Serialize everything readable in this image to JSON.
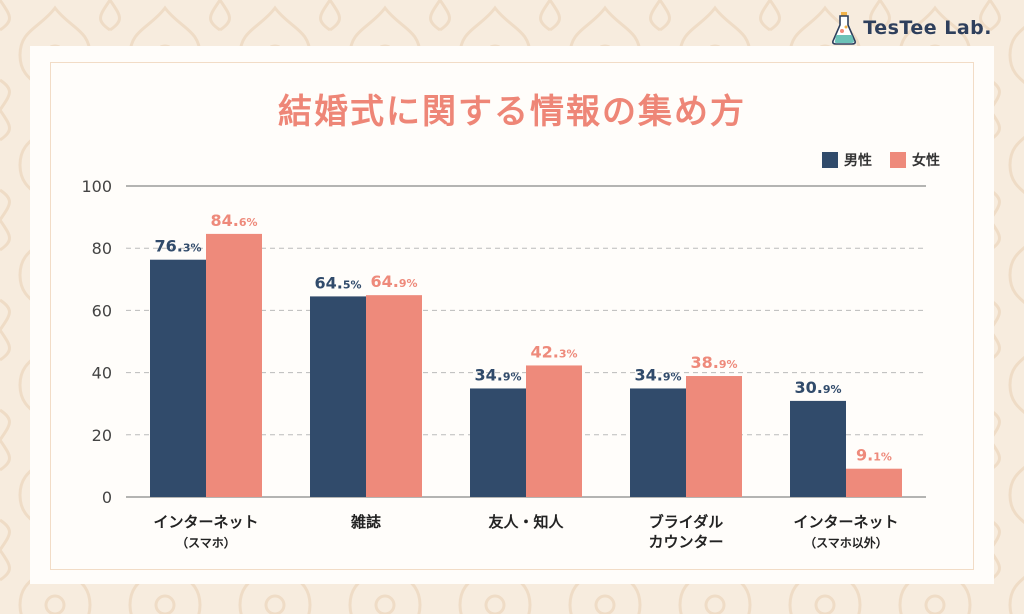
{
  "brand": {
    "logo_text": "TesTee Lab."
  },
  "colors": {
    "male": "#314b6b",
    "female": "#ee8a7b",
    "title": "#ee8677"
  },
  "chart_data": {
    "type": "bar",
    "title": "結婚式に関する情報の集め方",
    "categories": [
      [
        "インターネット",
        "（スマホ）"
      ],
      [
        "雑誌"
      ],
      [
        "友人・知人"
      ],
      [
        "ブライダル",
        "カウンター"
      ],
      [
        "インターネット",
        "（スマホ以外）"
      ]
    ],
    "series": [
      {
        "name": "男性",
        "color": "#314b6b",
        "values": [
          76.3,
          64.5,
          34.9,
          34.9,
          30.9
        ]
      },
      {
        "name": "女性",
        "color": "#ee8a7b",
        "values": [
          84.6,
          64.9,
          42.3,
          38.9,
          9.1
        ]
      }
    ],
    "value_unit": "%",
    "ylim": [
      0,
      100
    ],
    "yticks": [
      0,
      20,
      40,
      60,
      80,
      100
    ],
    "grid": true,
    "legend_position": "top-right",
    "xlabel": "",
    "ylabel": ""
  }
}
